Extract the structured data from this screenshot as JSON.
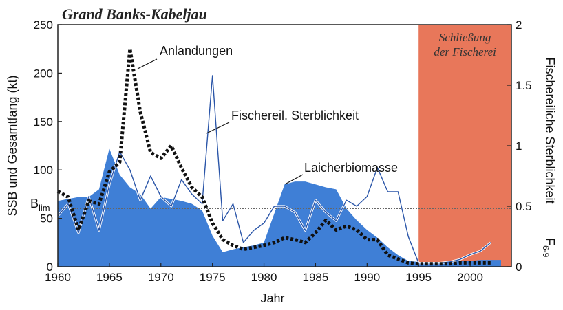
{
  "chart_data": {
    "type": "line",
    "title": "Grand Banks-Kabeljau",
    "xlabel": "Jahr",
    "ylabel_left": "SSB und Gesamtfang (kt)",
    "ylabel_right": "Fischereiliche Sterblichkeit",
    "ylabel_right_sub": "F",
    "ylabel_right_subscript": "6-9",
    "xlim": [
      1960,
      2004
    ],
    "ylim_left": [
      0,
      250
    ],
    "ylim_right": [
      0,
      2
    ],
    "x_ticks": [
      "1960",
      "1965",
      "1970",
      "1975",
      "1980",
      "1985",
      "1990",
      "1995",
      "2000"
    ],
    "y_ticks_left": [
      "0",
      "50",
      "100",
      "150",
      "200",
      "250"
    ],
    "y_ticks_right": [
      "0",
      "0.5",
      "1",
      "1.5",
      "2"
    ],
    "reference_line": {
      "label": "B",
      "label_sub": "lim",
      "value": 60
    },
    "closure": {
      "from": 1995,
      "to": 2004,
      "label_line1": "Schließung",
      "label_line2": "der Fischerei",
      "color": "#e8775a"
    },
    "annotations": {
      "landings": "Anlandungen",
      "mortality": "Fischereil. Sterblichkeit",
      "ssb": "Laicherbiomasse"
    },
    "colors": {
      "ssb_fill": "#3f7fd6",
      "mortality_line": "#2a55a8",
      "landings_line": "#111111",
      "reference": "#666666"
    },
    "series": [
      {
        "name": "Laicherbiomasse",
        "axis": "left",
        "style": "area",
        "x": [
          1960,
          1961,
          1962,
          1963,
          1964,
          1965,
          1966,
          1967,
          1968,
          1969,
          1970,
          1971,
          1972,
          1973,
          1974,
          1975,
          1976,
          1977,
          1978,
          1979,
          1980,
          1981,
          1982,
          1983,
          1984,
          1985,
          1986,
          1987,
          1988,
          1989,
          1990,
          1991,
          1992,
          1993,
          1994,
          1995,
          1996,
          1997,
          1998,
          1999,
          2000,
          2001,
          2002,
          2003
        ],
        "values": [
          68,
          70,
          72,
          72,
          80,
          122,
          95,
          82,
          75,
          60,
          72,
          70,
          68,
          65,
          58,
          32,
          15,
          18,
          20,
          22,
          25,
          55,
          85,
          88,
          88,
          85,
          82,
          80,
          60,
          48,
          38,
          30,
          20,
          12,
          6,
          5,
          5,
          5,
          5,
          6,
          6,
          7,
          7,
          7
        ]
      },
      {
        "name": "Anlandungen",
        "axis": "left",
        "style": "dotted",
        "x": [
          1960,
          1961,
          1962,
          1963,
          1964,
          1965,
          1966,
          1967,
          1968,
          1969,
          1970,
          1971,
          1972,
          1973,
          1974,
          1975,
          1976,
          1977,
          1978,
          1979,
          1980,
          1981,
          1982,
          1983,
          1984,
          1985,
          1986,
          1987,
          1988,
          1989,
          1990,
          1991,
          1992,
          1993,
          1994,
          1995,
          1996,
          1997,
          1998,
          1999,
          2000,
          2001,
          2002
        ],
        "values": [
          78,
          72,
          38,
          68,
          65,
          98,
          108,
          225,
          160,
          118,
          112,
          125,
          102,
          82,
          72,
          45,
          28,
          22,
          18,
          20,
          22,
          25,
          30,
          28,
          25,
          35,
          48,
          38,
          42,
          38,
          28,
          28,
          12,
          8,
          4,
          3,
          3,
          3,
          3,
          4,
          4,
          4,
          4
        ]
      },
      {
        "name": "Fischereil. Sterblichkeit",
        "axis": "right",
        "style": "line",
        "x": [
          1960,
          1961,
          1962,
          1963,
          1964,
          1965,
          1966,
          1967,
          1968,
          1969,
          1970,
          1971,
          1972,
          1973,
          1974,
          1975,
          1976,
          1977,
          1978,
          1979,
          1980,
          1981,
          1982,
          1983,
          1984,
          1985,
          1986,
          1987,
          1988,
          1989,
          1990,
          1991,
          1992,
          1993,
          1994,
          1995,
          1996,
          1997,
          1998,
          1999,
          2000,
          2001,
          2002
        ],
        "values": [
          0.42,
          0.52,
          0.28,
          0.58,
          0.3,
          0.68,
          0.95,
          0.8,
          0.55,
          0.75,
          0.58,
          0.5,
          0.72,
          0.6,
          0.52,
          1.58,
          0.38,
          0.52,
          0.2,
          0.3,
          0.36,
          0.5,
          0.5,
          0.45,
          0.3,
          0.55,
          0.45,
          0.38,
          0.55,
          0.5,
          0.58,
          0.82,
          0.62,
          0.62,
          0.25,
          0.03,
          0.03,
          0.03,
          0.04,
          0.06,
          0.1,
          0.13,
          0.2
        ]
      }
    ]
  }
}
